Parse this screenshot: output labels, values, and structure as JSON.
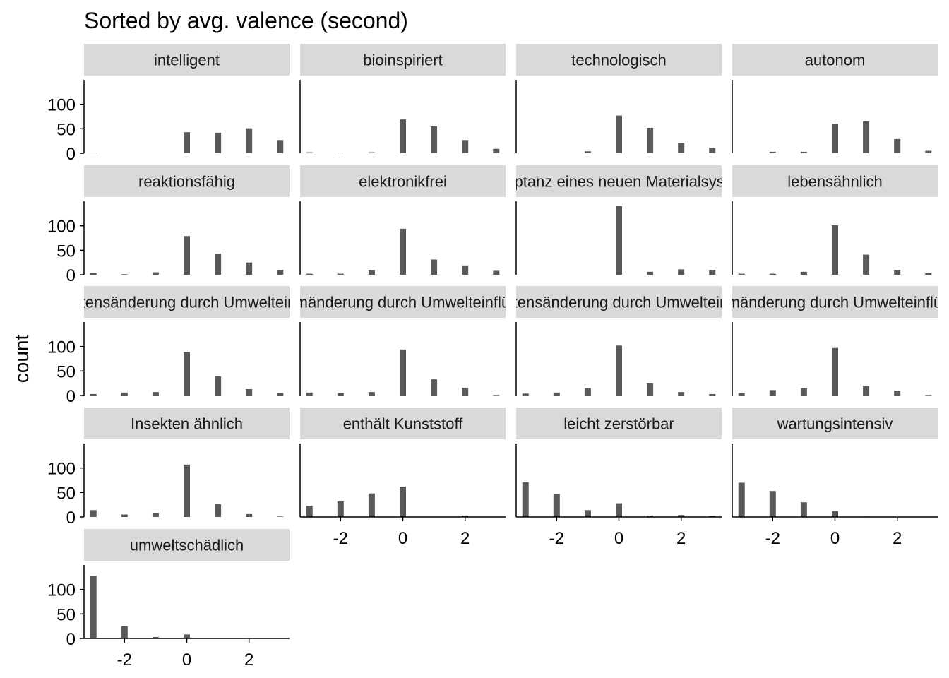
{
  "chart_data": {
    "type": "bar",
    "title": "Sorted by avg. valence (second)",
    "xlabel": "",
    "ylabel": "count",
    "x": [
      -3,
      -2,
      -1,
      0,
      1,
      2,
      3
    ],
    "xlim": [
      -3.3,
      3.3
    ],
    "xticks": [
      -2,
      0,
      2
    ],
    "ylim": [
      0,
      150
    ],
    "yticks": [
      0,
      50,
      100
    ],
    "grid": false,
    "bar_color": "#595959",
    "strip_color": "#d9d9d9",
    "panels": [
      {
        "name": "intelligent",
        "values": [
          1,
          0,
          0,
          43,
          42,
          51,
          27
        ]
      },
      {
        "name": "bioinspiriert",
        "values": [
          2,
          1,
          2,
          69,
          55,
          27,
          9
        ]
      },
      {
        "name": "technologisch",
        "values": [
          0,
          0,
          4,
          77,
          52,
          21,
          11
        ]
      },
      {
        "name": "autonom",
        "values": [
          0,
          3,
          3,
          60,
          65,
          29,
          5
        ]
      },
      {
        "name": "reaktionsfähig",
        "values": [
          3,
          1,
          5,
          79,
          43,
          25,
          10
        ]
      },
      {
        "name": "elektronikfrei",
        "values": [
          2,
          2,
          10,
          94,
          31,
          19,
          8
        ]
      },
      {
        "name": "Akzeptanz eines neuen Materialsystems",
        "values": [
          0,
          0,
          0,
          140,
          6,
          11,
          10
        ]
      },
      {
        "name": "lebensähnlich",
        "values": [
          2,
          2,
          6,
          101,
          41,
          10,
          3
        ]
      },
      {
        "name": "Verhaltensänderung durch Umwelteinflüsse",
        "values": [
          3,
          6,
          7,
          89,
          39,
          13,
          5
        ]
      },
      {
        "name": "Formänderung durch Umwelteinflüsse",
        "values": [
          6,
          5,
          7,
          94,
          33,
          16,
          1
        ]
      },
      {
        "name": "Verhaltensänderung durch Umwelteinflüsse",
        "values": [
          4,
          6,
          15,
          102,
          25,
          7,
          3
        ]
      },
      {
        "name": "Formänderung durch Umwelteinflüsse",
        "values": [
          5,
          11,
          15,
          97,
          20,
          10,
          1
        ]
      },
      {
        "name": "Insekten ähnlich",
        "values": [
          14,
          5,
          8,
          107,
          26,
          6,
          1
        ]
      },
      {
        "name": "enthält Kunststoff",
        "values": [
          23,
          32,
          48,
          62,
          0,
          3,
          0
        ]
      },
      {
        "name": "leicht zerstörbar",
        "values": [
          71,
          47,
          14,
          28,
          3,
          4,
          2
        ]
      },
      {
        "name": "wartungsintensiv",
        "values": [
          70,
          53,
          30,
          12,
          1,
          0,
          0
        ]
      },
      {
        "name": "umweltschädlich",
        "values": [
          128,
          25,
          3,
          8,
          0,
          1,
          1
        ]
      }
    ]
  }
}
